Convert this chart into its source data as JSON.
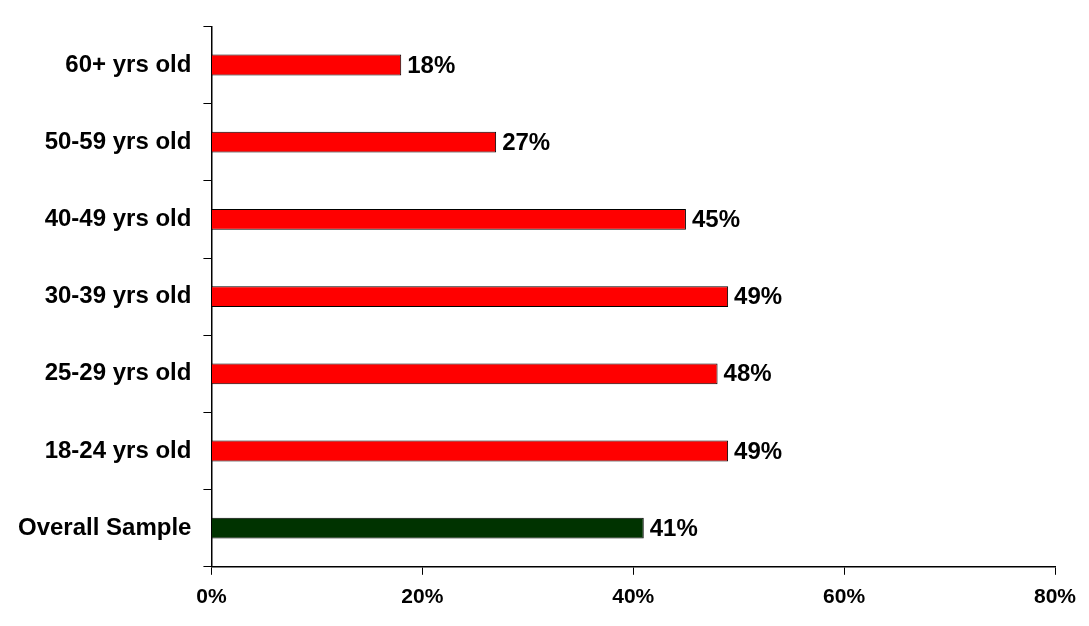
{
  "chart_data": {
    "type": "bar",
    "orientation": "horizontal",
    "categories": [
      "60+ yrs old",
      "50-59 yrs old",
      "40-49 yrs old",
      "30-39 yrs old",
      "25-29 yrs old",
      "18-24 yrs old",
      "Overall Sample"
    ],
    "values": [
      18,
      27,
      45,
      49,
      48,
      49,
      41
    ],
    "colors": [
      "#ff0000",
      "#ff0000",
      "#ff0000",
      "#ff0000",
      "#ff0000",
      "#ff0000",
      "#003300"
    ],
    "value_labels": [
      "18%",
      "27%",
      "45%",
      "49%",
      "48%",
      "49%",
      "41%"
    ],
    "xlim": [
      0,
      80
    ],
    "xticks": [
      {
        "value": 0,
        "label": "0%"
      },
      {
        "value": 20,
        "label": "20%"
      },
      {
        "value": 40,
        "label": "40%"
      },
      {
        "value": 60,
        "label": "60%"
      },
      {
        "value": 80,
        "label": "80%"
      }
    ],
    "grid": false,
    "legend": false
  }
}
